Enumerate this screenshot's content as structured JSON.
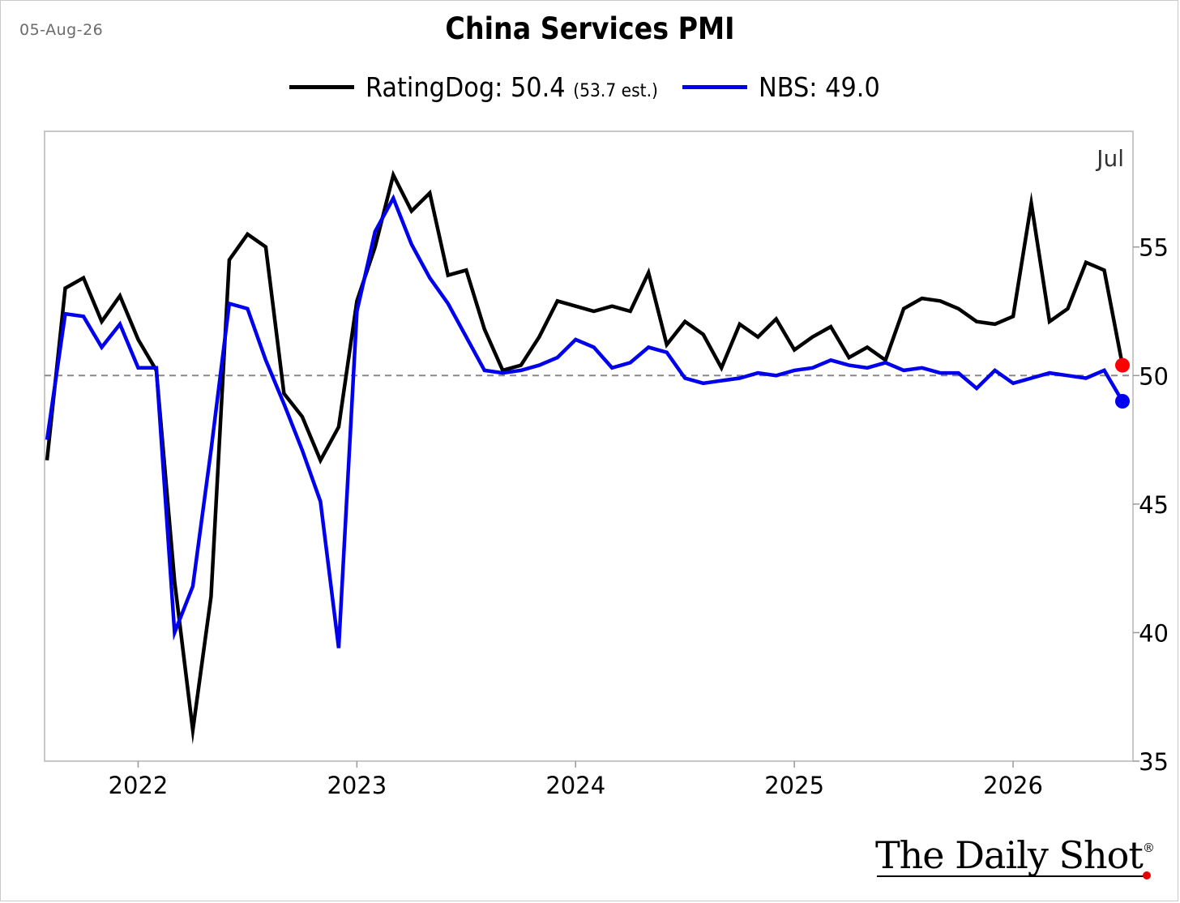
{
  "header": {
    "date": "05-Aug-26",
    "title": "China Services PMI"
  },
  "legend": [
    {
      "label": "RatingDog: 50.4",
      "note": "(53.7 est.)",
      "color": "#000000"
    },
    {
      "label": "NBS: 49.0",
      "note": "",
      "color": "#0000ee"
    }
  ],
  "annotation": "Jul",
  "brand": "The Daily Shot",
  "brand_mark": "®",
  "colors": {
    "ratingdog": "#000000",
    "nbs": "#0000ee",
    "ratingdog_end": "#ff0000",
    "nbs_end": "#0000ee",
    "reference": "#888888"
  },
  "chart_data": {
    "type": "line",
    "x_start": "2021-08",
    "x_end": "2026-07",
    "xticks": [
      "2022",
      "2023",
      "2024",
      "2025",
      "2026"
    ],
    "yticks": [
      "35",
      "40",
      "45",
      "50",
      "55"
    ],
    "ylim": [
      35,
      59.5
    ],
    "reference_line": 50,
    "grid": false,
    "legend_position": "top",
    "y_axis_side": "right",
    "series": [
      {
        "name": "RatingDog",
        "values": [
          46.7,
          53.4,
          53.8,
          52.1,
          53.1,
          51.4,
          50.2,
          42.0,
          36.2,
          41.4,
          54.5,
          55.5,
          55.0,
          49.3,
          48.4,
          46.7,
          48.0,
          52.9,
          55.0,
          57.8,
          56.4,
          57.1,
          53.9,
          54.1,
          51.8,
          50.2,
          50.4,
          51.5,
          52.9,
          52.7,
          52.5,
          52.7,
          52.5,
          54.0,
          51.2,
          52.1,
          51.6,
          50.3,
          52.0,
          51.5,
          52.2,
          51.0,
          51.5,
          51.9,
          50.7,
          51.1,
          50.6,
          52.6,
          53.0,
          52.9,
          52.6,
          52.1,
          52.0,
          52.3,
          56.7,
          52.1,
          52.6,
          54.4,
          54.1,
          50.4
        ]
      },
      {
        "name": "NBS",
        "values": [
          47.5,
          52.4,
          52.3,
          51.1,
          52.0,
          50.3,
          50.3,
          40.0,
          41.8,
          47.1,
          52.8,
          52.6,
          50.6,
          48.9,
          47.1,
          45.1,
          39.4,
          52.5,
          55.6,
          56.9,
          55.1,
          53.8,
          52.8,
          51.5,
          50.2,
          50.1,
          50.2,
          50.4,
          50.7,
          51.4,
          51.1,
          50.3,
          50.5,
          51.1,
          50.9,
          49.9,
          49.7,
          49.8,
          49.9,
          50.1,
          50.0,
          50.2,
          50.3,
          50.6,
          50.4,
          50.3,
          50.5,
          50.2,
          50.3,
          50.1,
          50.1,
          49.5,
          50.2,
          49.7,
          49.9,
          50.1,
          50.0,
          49.9,
          50.2,
          49.0
        ]
      }
    ]
  }
}
